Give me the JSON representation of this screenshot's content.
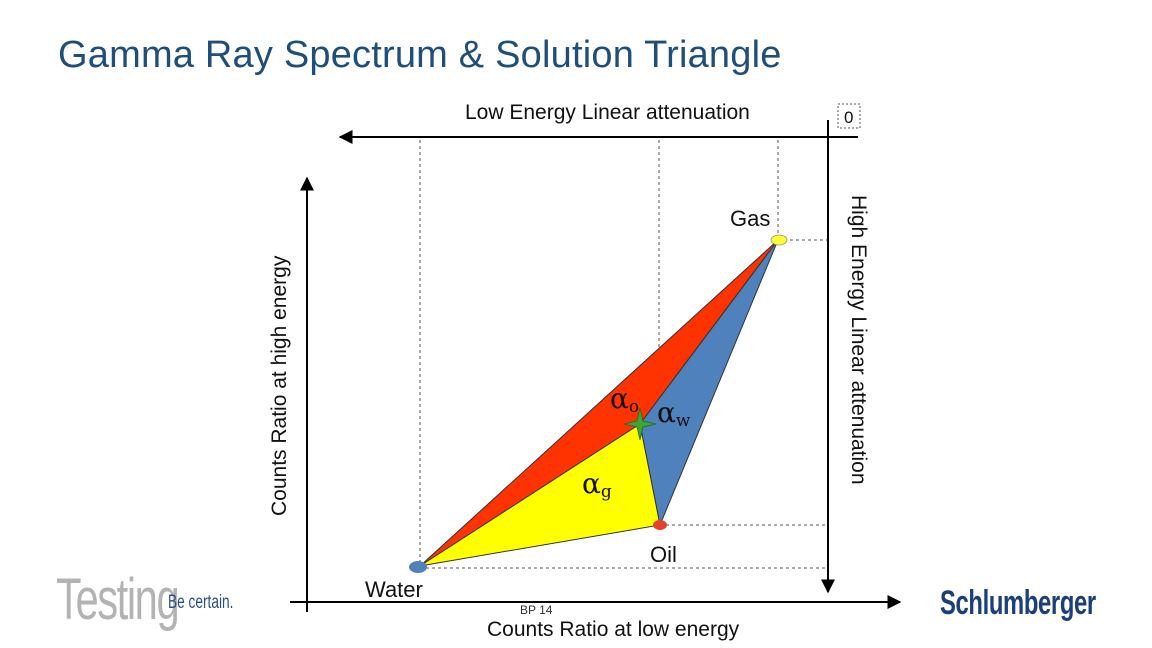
{
  "slide": {
    "title": "Gamma Ray Spectrum & Solution Triangle",
    "footer": "BP   14"
  },
  "diagram": {
    "top_axis_label": "Low Energy Linear attenuation",
    "top_axis_zero": "0",
    "right_axis_label": "High Energy Linear attenuation",
    "left_axis_label": "Counts Ratio at high energy",
    "bottom_axis_label": "Counts Ratio at low energy",
    "points": {
      "gas": "Gas",
      "oil": "Oil",
      "water": "Water"
    },
    "greek": {
      "alpha": "α",
      "o_sub": "o",
      "w_sub": "w",
      "g_sub": "g"
    },
    "colors": {
      "red_region": "#ff3300",
      "blue_region": "#4f81bd",
      "yellow_region": "#ffff00",
      "gas_marker": "#ffff33",
      "oil_marker": "#e8402a",
      "water_marker": "#4f81bd",
      "star": "#3fa535",
      "title": "#1f4e79"
    }
  },
  "logos": {
    "testing": "Testing",
    "tagline": "Be certain.",
    "company": "Schlumberger"
  }
}
